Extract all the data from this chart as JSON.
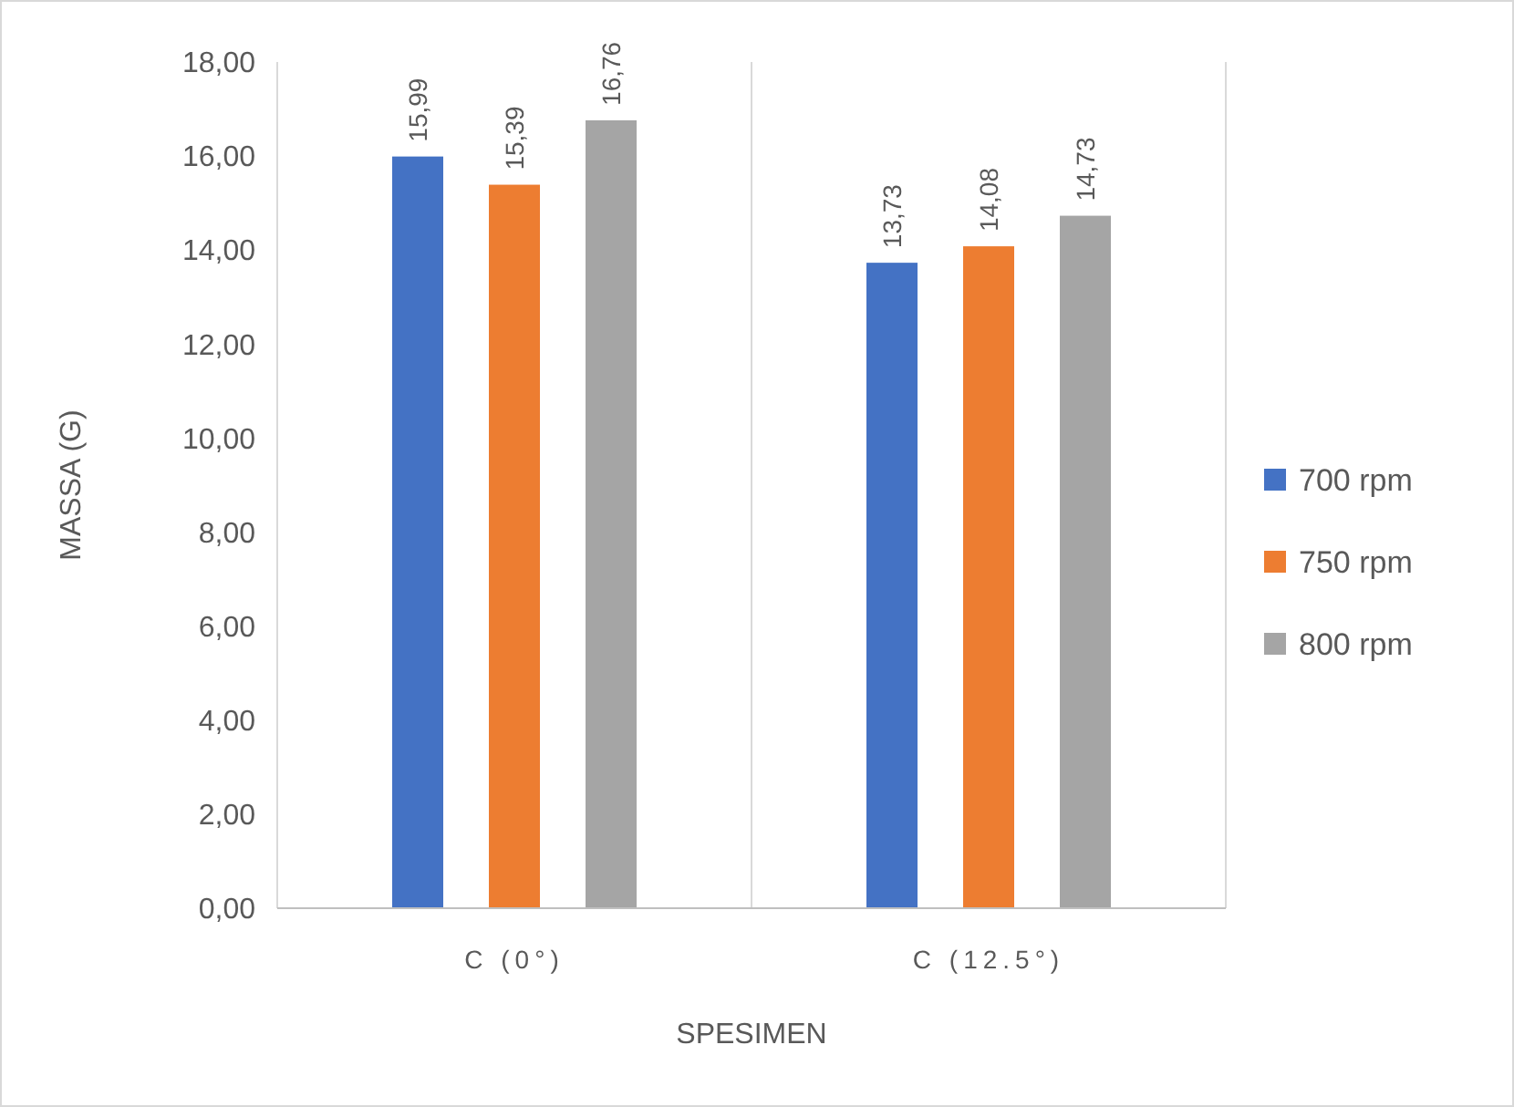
{
  "chart_data": {
    "type": "bar",
    "xlabel": "SPESIMEN",
    "ylabel": "MASSA (G)",
    "categories": [
      "C (0°)",
      "C (12.5°)"
    ],
    "series": [
      {
        "name": "700 rpm",
        "color": "#4472c4",
        "values": [
          15.99,
          13.73
        ],
        "value_labels": [
          "15,99",
          "13,73"
        ]
      },
      {
        "name": "750 rpm",
        "color": "#ed7d31",
        "values": [
          15.39,
          14.08
        ],
        "value_labels": [
          "15,39",
          "14,08"
        ]
      },
      {
        "name": "800 rpm",
        "color": "#a5a5a5",
        "values": [
          16.76,
          14.73
        ],
        "value_labels": [
          "16,76",
          "14,73"
        ]
      }
    ],
    "ylim": [
      0,
      18
    ],
    "yticks": [
      {
        "value": 0,
        "label": "0,00"
      },
      {
        "value": 2,
        "label": "2,00"
      },
      {
        "value": 4,
        "label": "4,00"
      },
      {
        "value": 6,
        "label": "6,00"
      },
      {
        "value": 8,
        "label": "8,00"
      },
      {
        "value": 10,
        "label": "10,00"
      },
      {
        "value": 12,
        "label": "12,00"
      },
      {
        "value": 14,
        "label": "14,00"
      },
      {
        "value": 16,
        "label": "16,00"
      },
      {
        "value": 18,
        "label": "18,00"
      }
    ],
    "grid": "x",
    "legend": "right"
  }
}
